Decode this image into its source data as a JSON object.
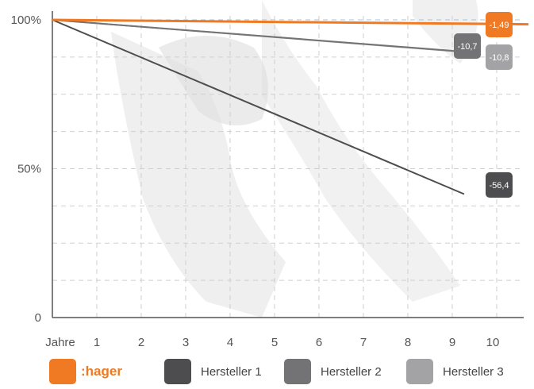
{
  "chart_data": {
    "type": "line",
    "x": [
      0,
      10
    ],
    "xticks": [
      "Jahre",
      "1",
      "2",
      "3",
      "4",
      "5",
      "6",
      "7",
      "8",
      "9",
      "10"
    ],
    "yticks": [
      "100%",
      "50%",
      "0"
    ],
    "ylim": [
      0,
      100
    ],
    "xlim": [
      0,
      10
    ],
    "grid": true,
    "legend_position": "bottom",
    "series": [
      {
        "name": ":hager",
        "values": [
          100,
          98.51
        ],
        "label": "-1,49",
        "color": "#f07a23"
      },
      {
        "name": "Hersteller 1",
        "values": [
          100,
          43.6
        ],
        "label": "-56,4",
        "color": "#4d4d4f"
      },
      {
        "name": "Hersteller 2",
        "values": [
          100,
          89.3
        ],
        "label": "-10,7",
        "color": "#737375"
      },
      {
        "name": "Hersteller 3",
        "values": [
          100,
          89.2
        ],
        "label": "-10,8",
        "color": "#a3a3a5"
      }
    ]
  }
}
